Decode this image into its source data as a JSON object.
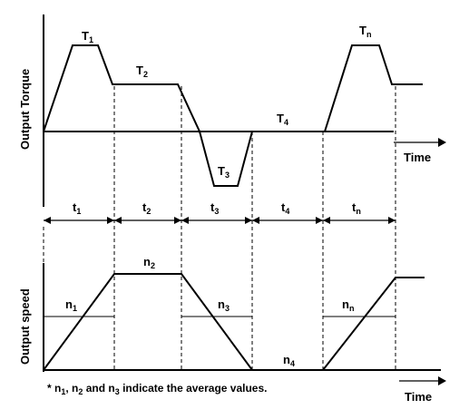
{
  "torque_chart": {
    "y_axis_label": "Output  Torque",
    "x_axis_label": "Time",
    "labels": [
      {
        "base": "T",
        "sub": "1"
      },
      {
        "base": "T",
        "sub": "2"
      },
      {
        "base": "T",
        "sub": "3"
      },
      {
        "base": "T",
        "sub": "4"
      },
      {
        "base": "T",
        "sub": "n"
      }
    ]
  },
  "intervals": [
    {
      "base": "t",
      "sub": "1"
    },
    {
      "base": "t",
      "sub": "2"
    },
    {
      "base": "t",
      "sub": "3"
    },
    {
      "base": "t",
      "sub": "4"
    },
    {
      "base": "t",
      "sub": "n"
    }
  ],
  "speed_chart": {
    "y_axis_label": "Output  speed",
    "x_axis_label": "Time",
    "labels": [
      {
        "base": "n",
        "sub": "1"
      },
      {
        "base": "n",
        "sub": "2"
      },
      {
        "base": "n",
        "sub": "3"
      },
      {
        "base": "n",
        "sub": "4"
      },
      {
        "base": "n",
        "sub": "n"
      }
    ]
  },
  "footnote": {
    "prefix": "* n",
    "s1": "1",
    "comma": ", n",
    "s2": "2",
    "and": " and n",
    "s3": "3",
    "rest": " indicate the average values."
  }
}
